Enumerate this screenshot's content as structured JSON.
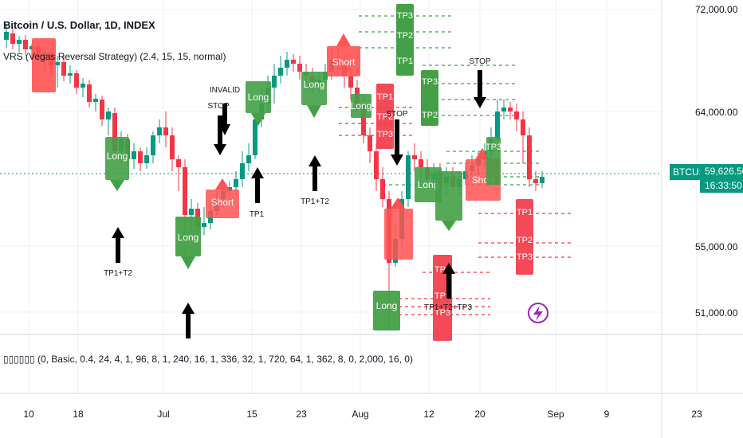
{
  "header": {
    "symbol_title": "Bitcoin / U.S. Dollar, 1D, INDEX",
    "indicator_label": "VRS (Vegas Reversal Strategy) (2.4, 15, 15, normal)",
    "pane2_label": "▯▯▯▯▯▯ (0, Basic, 0.4, 24, 4, 1, 96, 8, 1, 240, 16, 1, 336, 32, 1, 720, 64, 1, 362, 8, 0, 2,000, 16, 0)"
  },
  "price_axis": {
    "ticks": [
      "72,000.00",
      "64,000.00",
      "55,000.00",
      "51,000.00"
    ],
    "symbol_tag": "BTCUSD",
    "last_price": "59,626.50",
    "countdown": "16:33:50"
  },
  "time_axis": {
    "ticks": [
      "10",
      "18",
      "Jul",
      "15",
      "23",
      "Aug",
      "12",
      "20",
      "Sep",
      "9",
      "23"
    ]
  },
  "annotations": {
    "long": "Long",
    "short": "Short",
    "tp1": "TP1",
    "tp2": "TP2",
    "tp3": "TP3",
    "invalid": "INVALID",
    "stop": "STOP",
    "tp1t2": "TP1+T2",
    "tp1t2tp3": "TP1+T2+TP3"
  },
  "colors": {
    "up": "#089981",
    "down": "#f23645",
    "long_label": "#43a047",
    "short_label": "#ff5252",
    "current_price": "#089981",
    "flash_icon": "#9c27b0"
  }
}
